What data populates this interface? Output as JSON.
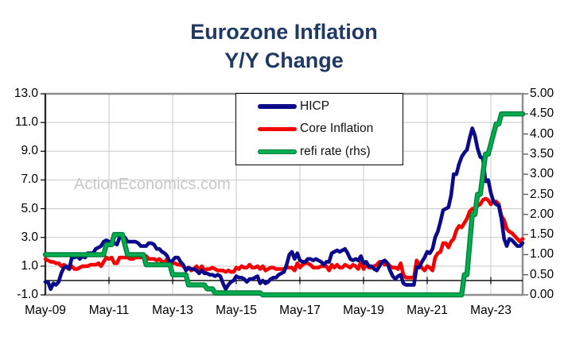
{
  "title": {
    "line1": "Eurozone Inflation",
    "line2": "Y/Y Change"
  },
  "watermark": "ActionEconomics.com",
  "legend": {
    "items": [
      {
        "label": "HICP",
        "color": "#0A0A8B"
      },
      {
        "label": "Core Inflation",
        "color": "#F60000"
      },
      {
        "label": "refi rate (rhs)",
        "color": "#00B050",
        "edge_color": "#00813B"
      }
    ]
  },
  "colors": {
    "title": "#1F3864",
    "gridline": "#c9c9c9",
    "plot_border": "#8e8e8e",
    "axis": "#000000",
    "watermark": "#c8c8c8"
  },
  "chart_data": {
    "type": "line",
    "title": "Eurozone Inflation Y/Y Change",
    "x_start": "May-09",
    "x_end": "May-24",
    "frequency": "monthly",
    "x_tick_labels": [
      "May-09",
      "May-11",
      "May-13",
      "May-15",
      "May-17",
      "May-19",
      "May-21",
      "May-23"
    ],
    "months_per_tick": 24,
    "left_axis": {
      "min": -1.0,
      "max": 13.0,
      "ticks": [
        "13.0",
        "11.0",
        "9.0",
        "7.0",
        "5.0",
        "3.0",
        "1.0",
        "-1.0"
      ]
    },
    "right_axis": {
      "min": 0.0,
      "max": 5.0,
      "ticks": [
        "5.00",
        "4.50",
        "4.00",
        "3.50",
        "3.00",
        "2.50",
        "2.00",
        "1.50",
        "1.00",
        "0.50",
        "0.00"
      ]
    },
    "zero_line": true,
    "grid": true,
    "legend_position": "top-center-inside",
    "series": [
      {
        "id": "hicp",
        "name": "HICP",
        "axis": "left",
        "color": "#0A0A8B",
        "values": [
          -0.1,
          -0.1,
          -0.6,
          -0.2,
          -0.3,
          -0.1,
          0.5,
          0.9,
          1.0,
          0.8,
          1.6,
          1.6,
          1.7,
          1.5,
          1.7,
          1.6,
          1.9,
          1.9,
          1.9,
          2.2,
          2.3,
          2.4,
          2.7,
          2.8,
          2.7,
          2.7,
          2.6,
          2.5,
          3.0,
          3.0,
          3.0,
          2.7,
          2.7,
          2.7,
          2.7,
          2.6,
          2.4,
          2.4,
          2.4,
          2.6,
          2.6,
          2.5,
          2.2,
          2.2,
          2.0,
          1.9,
          1.7,
          1.2,
          1.4,
          1.6,
          1.6,
          1.3,
          1.1,
          0.7,
          0.9,
          0.8,
          0.8,
          0.7,
          0.5,
          0.7,
          0.5,
          0.5,
          0.4,
          0.4,
          0.3,
          0.4,
          0.3,
          -0.2,
          -0.6,
          -0.3,
          -0.1,
          0.0,
          0.3,
          0.2,
          0.2,
          0.1,
          -0.1,
          0.1,
          0.1,
          0.2,
          0.3,
          -0.2,
          0.0,
          -0.2,
          -0.1,
          0.1,
          0.2,
          0.2,
          0.4,
          0.5,
          0.6,
          1.1,
          1.8,
          2.0,
          1.5,
          1.9,
          1.4,
          1.3,
          1.3,
          1.5,
          1.5,
          1.4,
          1.5,
          1.4,
          1.3,
          1.1,
          1.3,
          1.3,
          1.9,
          2.0,
          2.1,
          2.0,
          2.1,
          2.2,
          1.9,
          1.5,
          1.4,
          1.5,
          1.4,
          1.7,
          1.2,
          1.3,
          1.0,
          1.0,
          0.8,
          0.7,
          1.0,
          1.3,
          1.4,
          1.2,
          0.7,
          0.3,
          0.1,
          0.3,
          0.4,
          -0.2,
          -0.3,
          -0.3,
          -0.3,
          -0.3,
          0.9,
          0.9,
          1.3,
          1.6,
          2.0,
          1.9,
          2.2,
          3.0,
          3.4,
          4.1,
          4.9,
          5.0,
          5.1,
          5.9,
          7.4,
          7.4,
          8.1,
          8.6,
          8.9,
          9.1,
          9.9,
          10.6,
          10.1,
          9.2,
          8.6,
          8.5,
          6.9,
          7.0,
          6.1,
          5.5,
          5.3,
          5.2,
          4.3,
          2.9,
          2.4,
          2.9,
          2.8,
          2.6,
          2.4,
          2.4,
          2.6
        ]
      },
      {
        "id": "core",
        "name": "Core Inflation",
        "axis": "left",
        "color": "#F60000",
        "values": [
          1.5,
          1.4,
          1.3,
          1.3,
          1.2,
          1.2,
          1.0,
          1.1,
          0.9,
          0.8,
          1.0,
          0.8,
          0.8,
          0.9,
          1.0,
          1.0,
          1.0,
          1.1,
          1.1,
          1.1,
          1.2,
          1.0,
          1.3,
          1.6,
          1.5,
          1.6,
          1.2,
          1.2,
          1.6,
          1.6,
          1.6,
          1.6,
          1.5,
          1.5,
          1.6,
          1.6,
          1.6,
          1.6,
          1.7,
          1.5,
          1.5,
          1.5,
          1.4,
          1.5,
          1.3,
          1.3,
          1.5,
          1.0,
          1.2,
          1.2,
          1.1,
          1.1,
          1.0,
          0.8,
          0.9,
          0.7,
          0.8,
          1.0,
          0.7,
          1.0,
          0.7,
          0.8,
          0.8,
          0.9,
          0.8,
          0.7,
          0.7,
          0.7,
          0.6,
          0.7,
          0.6,
          0.6,
          0.9,
          0.8,
          1.0,
          0.9,
          0.9,
          1.1,
          0.9,
          0.9,
          1.0,
          0.8,
          1.0,
          0.7,
          0.8,
          0.9,
          0.9,
          0.8,
          0.8,
          0.8,
          0.8,
          0.9,
          0.9,
          0.9,
          0.7,
          1.2,
          0.9,
          1.1,
          1.2,
          1.2,
          1.1,
          0.9,
          0.9,
          0.9,
          1.0,
          1.0,
          1.0,
          0.7,
          1.1,
          0.9,
          1.1,
          0.9,
          0.9,
          1.1,
          1.0,
          0.9,
          1.1,
          1.0,
          0.8,
          1.3,
          0.8,
          1.1,
          0.9,
          0.9,
          1.0,
          1.1,
          1.3,
          1.3,
          1.1,
          1.2,
          1.0,
          0.9,
          0.9,
          0.8,
          1.2,
          0.4,
          0.2,
          0.2,
          0.2,
          0.2,
          1.4,
          1.1,
          0.9,
          0.7,
          1.0,
          0.9,
          0.7,
          1.6,
          1.9,
          2.0,
          2.6,
          2.6,
          2.3,
          2.7,
          2.9,
          3.5,
          3.8,
          3.7,
          4.0,
          4.3,
          4.8,
          5.0,
          5.0,
          5.2,
          5.3,
          5.6,
          5.7,
          5.6,
          5.3,
          5.5,
          5.5,
          5.3,
          4.5,
          4.2,
          3.6,
          3.4,
          3.3,
          3.1,
          2.9,
          2.7,
          2.9
        ]
      },
      {
        "id": "refi",
        "name": "refi rate (rhs)",
        "axis": "right",
        "color": "#00B050",
        "edge_color": "#00813B",
        "values": [
          1,
          1,
          1,
          1,
          1,
          1,
          1,
          1,
          1,
          1,
          1,
          1,
          1,
          1,
          1,
          1,
          1,
          1,
          1,
          1,
          1,
          1,
          1,
          1.25,
          1.25,
          1.25,
          1.5,
          1.5,
          1.5,
          1.5,
          1.25,
          1,
          1,
          1,
          1,
          1,
          1,
          1,
          0.75,
          0.75,
          0.75,
          0.75,
          0.75,
          0.75,
          0.75,
          0.75,
          0.75,
          0.75,
          0.5,
          0.5,
          0.5,
          0.5,
          0.5,
          0.5,
          0.25,
          0.25,
          0.25,
          0.25,
          0.25,
          0.25,
          0.25,
          0.15,
          0.15,
          0.15,
          0.05,
          0.05,
          0.05,
          0.05,
          0.05,
          0.05,
          0.05,
          0.05,
          0.05,
          0.05,
          0.05,
          0.05,
          0.05,
          0.05,
          0.05,
          0.05,
          0.05,
          0.05,
          0,
          0,
          0,
          0,
          0,
          0,
          0,
          0,
          0,
          0,
          0,
          0,
          0,
          0,
          0,
          0,
          0,
          0,
          0,
          0,
          0,
          0,
          0,
          0,
          0,
          0,
          0,
          0,
          0,
          0,
          0,
          0,
          0,
          0,
          0,
          0,
          0,
          0,
          0,
          0,
          0,
          0,
          0,
          0,
          0,
          0,
          0,
          0,
          0,
          0,
          0,
          0,
          0,
          0,
          0,
          0,
          0,
          0,
          0,
          0,
          0,
          0,
          0,
          0,
          0,
          0,
          0,
          0,
          0,
          0,
          0,
          0,
          0,
          0,
          0,
          0,
          0.5,
          0.5,
          1.25,
          2.0,
          2.0,
          2.5,
          2.5,
          3.0,
          3.5,
          3.5,
          3.75,
          4.0,
          4.25,
          4.25,
          4.5,
          4.5,
          4.5,
          4.5,
          4.5,
          4.5,
          4.5,
          4.5,
          4.5
        ]
      }
    ]
  }
}
